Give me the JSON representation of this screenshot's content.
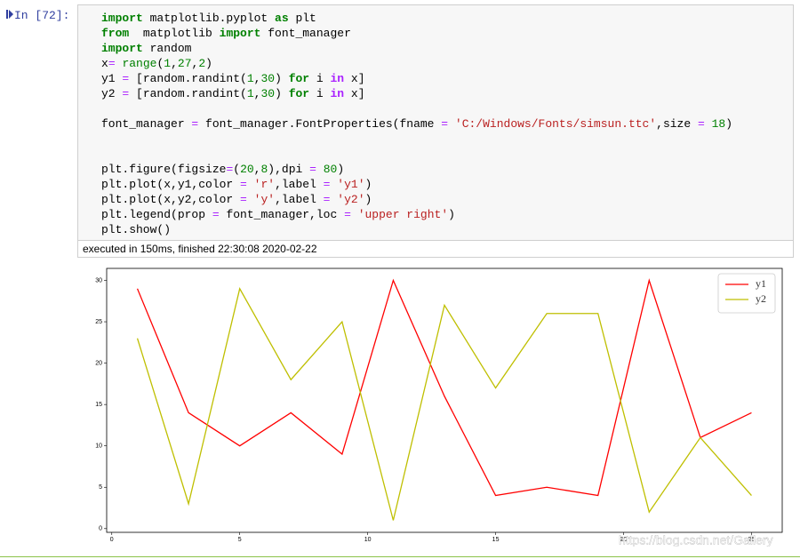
{
  "prompt": "In [72]:",
  "code": [
    [
      {
        "text": "import",
        "color": "#008000",
        "bold": true
      },
      {
        "text": " matplotlib.pyplot "
      },
      {
        "text": "as",
        "color": "#008000",
        "bold": true
      },
      {
        "text": " plt"
      }
    ],
    [
      {
        "text": "from",
        "color": "#008000",
        "bold": true
      },
      {
        "text": "  matplotlib "
      },
      {
        "text": "import",
        "color": "#008000",
        "bold": true
      },
      {
        "text": " font_manager"
      }
    ],
    [
      {
        "text": "import",
        "color": "#008000",
        "bold": true
      },
      {
        "text": " random"
      }
    ],
    [
      {
        "text": "x"
      },
      {
        "text": "=",
        "color": "#aa22ff"
      },
      {
        "text": " "
      },
      {
        "text": "range",
        "color": "#008000"
      },
      {
        "text": "("
      },
      {
        "text": "1",
        "color": "#008000"
      },
      {
        "text": ","
      },
      {
        "text": "27",
        "color": "#008000"
      },
      {
        "text": ","
      },
      {
        "text": "2",
        "color": "#008000"
      },
      {
        "text": ")"
      }
    ],
    [
      {
        "text": "y1 "
      },
      {
        "text": "=",
        "color": "#aa22ff"
      },
      {
        "text": " [random.randint("
      },
      {
        "text": "1",
        "color": "#008000"
      },
      {
        "text": ","
      },
      {
        "text": "30",
        "color": "#008000"
      },
      {
        "text": ") "
      },
      {
        "text": "for",
        "color": "#008000",
        "bold": true
      },
      {
        "text": " i "
      },
      {
        "text": "in",
        "color": "#aa22ff",
        "bold": true
      },
      {
        "text": " x]"
      }
    ],
    [
      {
        "text": "y2 "
      },
      {
        "text": "=",
        "color": "#aa22ff"
      },
      {
        "text": " [random.randint("
      },
      {
        "text": "1",
        "color": "#008000"
      },
      {
        "text": ","
      },
      {
        "text": "30",
        "color": "#008000"
      },
      {
        "text": ") "
      },
      {
        "text": "for",
        "color": "#008000",
        "bold": true
      },
      {
        "text": " i "
      },
      {
        "text": "in",
        "color": "#aa22ff",
        "bold": true
      },
      {
        "text": " x]"
      }
    ],
    [],
    [
      {
        "text": "font_manager "
      },
      {
        "text": "=",
        "color": "#aa22ff"
      },
      {
        "text": " font_manager.FontProperties(fname "
      },
      {
        "text": "=",
        "color": "#aa22ff"
      },
      {
        "text": " "
      },
      {
        "text": "'C:/Windows/Fonts/simsun.ttc'",
        "color": "#ba2121"
      },
      {
        "text": ",size "
      },
      {
        "text": "=",
        "color": "#aa22ff"
      },
      {
        "text": " "
      },
      {
        "text": "18",
        "color": "#008000"
      },
      {
        "text": ")"
      }
    ],
    [],
    [],
    [
      {
        "text": "plt.figure(figsize"
      },
      {
        "text": "=",
        "color": "#aa22ff"
      },
      {
        "text": "("
      },
      {
        "text": "20",
        "color": "#008000"
      },
      {
        "text": ","
      },
      {
        "text": "8",
        "color": "#008000"
      },
      {
        "text": "),dpi "
      },
      {
        "text": "=",
        "color": "#aa22ff"
      },
      {
        "text": " "
      },
      {
        "text": "80",
        "color": "#008000"
      },
      {
        "text": ")"
      }
    ],
    [
      {
        "text": "plt.plot(x,y1,color "
      },
      {
        "text": "=",
        "color": "#aa22ff"
      },
      {
        "text": " "
      },
      {
        "text": "'r'",
        "color": "#ba2121"
      },
      {
        "text": ",label "
      },
      {
        "text": "=",
        "color": "#aa22ff"
      },
      {
        "text": " "
      },
      {
        "text": "'y1'",
        "color": "#ba2121"
      },
      {
        "text": ")"
      }
    ],
    [
      {
        "text": "plt.plot(x,y2,color "
      },
      {
        "text": "=",
        "color": "#aa22ff"
      },
      {
        "text": " "
      },
      {
        "text": "'y'",
        "color": "#ba2121"
      },
      {
        "text": ",label "
      },
      {
        "text": "=",
        "color": "#aa22ff"
      },
      {
        "text": " "
      },
      {
        "text": "'y2'",
        "color": "#ba2121"
      },
      {
        "text": ")"
      }
    ],
    [
      {
        "text": "plt.legend(prop "
      },
      {
        "text": "=",
        "color": "#aa22ff"
      },
      {
        "text": " font_manager,loc "
      },
      {
        "text": "=",
        "color": "#aa22ff"
      },
      {
        "text": " "
      },
      {
        "text": "'upper right'",
        "color": "#ba2121"
      },
      {
        "text": ")"
      }
    ],
    [
      {
        "text": "plt.show()"
      }
    ]
  ],
  "execution": "executed in 150ms, finished 22:30:08 2020-02-22",
  "watermark": "https://blog.csdn.net/Gallery",
  "chart_data": {
    "type": "line",
    "x": [
      1,
      3,
      5,
      7,
      9,
      11,
      13,
      15,
      17,
      19,
      21,
      23,
      25
    ],
    "series": [
      {
        "name": "y1",
        "color": "#ff0000",
        "values": [
          29,
          14,
          10,
          14,
          9,
          30,
          16,
          4,
          5,
          4,
          30,
          11,
          14
        ]
      },
      {
        "name": "y2",
        "color": "#bfbf00",
        "values": [
          23,
          3,
          29,
          18,
          25,
          1,
          27,
          17,
          26,
          26,
          2,
          11,
          4
        ]
      }
    ],
    "xlim": [
      -0.2,
      26.2
    ],
    "xticks": [
      0,
      5,
      10,
      15,
      20,
      25
    ],
    "ylim": [
      -0.45,
      31.45
    ],
    "yticks": [
      0,
      5,
      10,
      15,
      20,
      25,
      30
    ],
    "legend": "upper right"
  }
}
